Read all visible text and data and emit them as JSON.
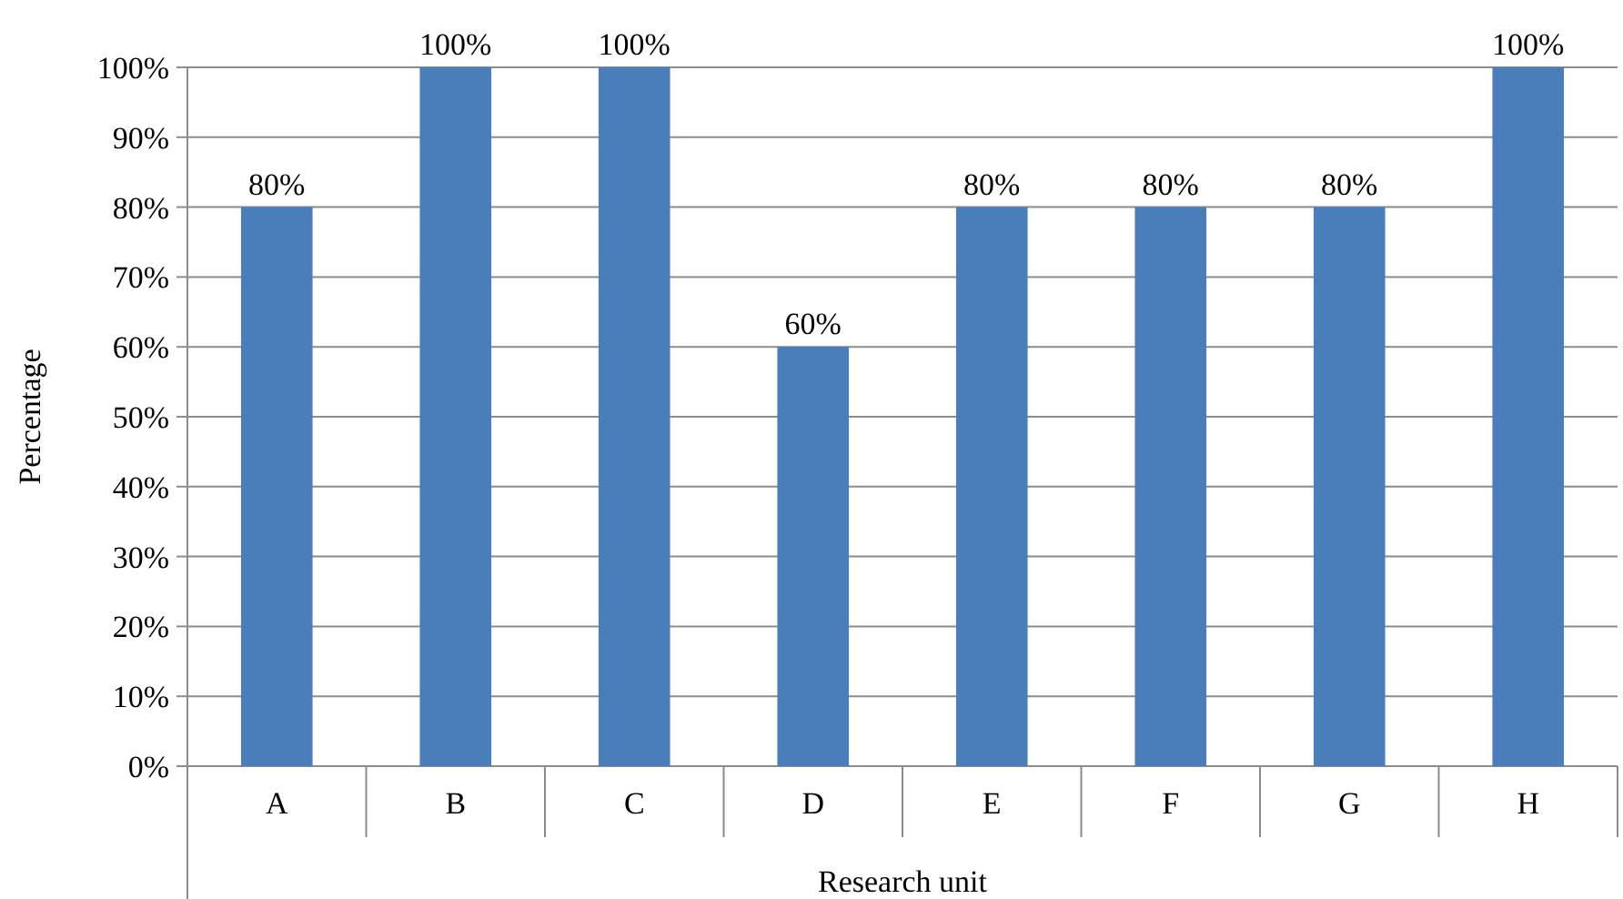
{
  "chart_data": {
    "type": "bar",
    "xlabel": "Research unit",
    "ylabel": "Percentage",
    "categories": [
      "A",
      "B",
      "C",
      "D",
      "E",
      "F",
      "G",
      "H"
    ],
    "values": [
      80,
      100,
      100,
      60,
      80,
      80,
      80,
      100
    ],
    "value_labels": [
      "80%",
      "100%",
      "100%",
      "60%",
      "80%",
      "80%",
      "80%",
      "100%"
    ],
    "color": "#4a7ebb",
    "ylim": [
      0,
      100
    ],
    "yticks": [
      {
        "value": 0,
        "label": "0%"
      },
      {
        "value": 10,
        "label": "10%"
      },
      {
        "value": 20,
        "label": "20%"
      },
      {
        "value": 30,
        "label": "30%"
      },
      {
        "value": 40,
        "label": "40%"
      },
      {
        "value": 50,
        "label": "50%"
      },
      {
        "value": 60,
        "label": "60%"
      },
      {
        "value": 70,
        "label": "70%"
      },
      {
        "value": 80,
        "label": "80%"
      },
      {
        "value": 90,
        "label": "90%"
      },
      {
        "value": 100,
        "label": "100%"
      }
    ],
    "grid": "y"
  }
}
